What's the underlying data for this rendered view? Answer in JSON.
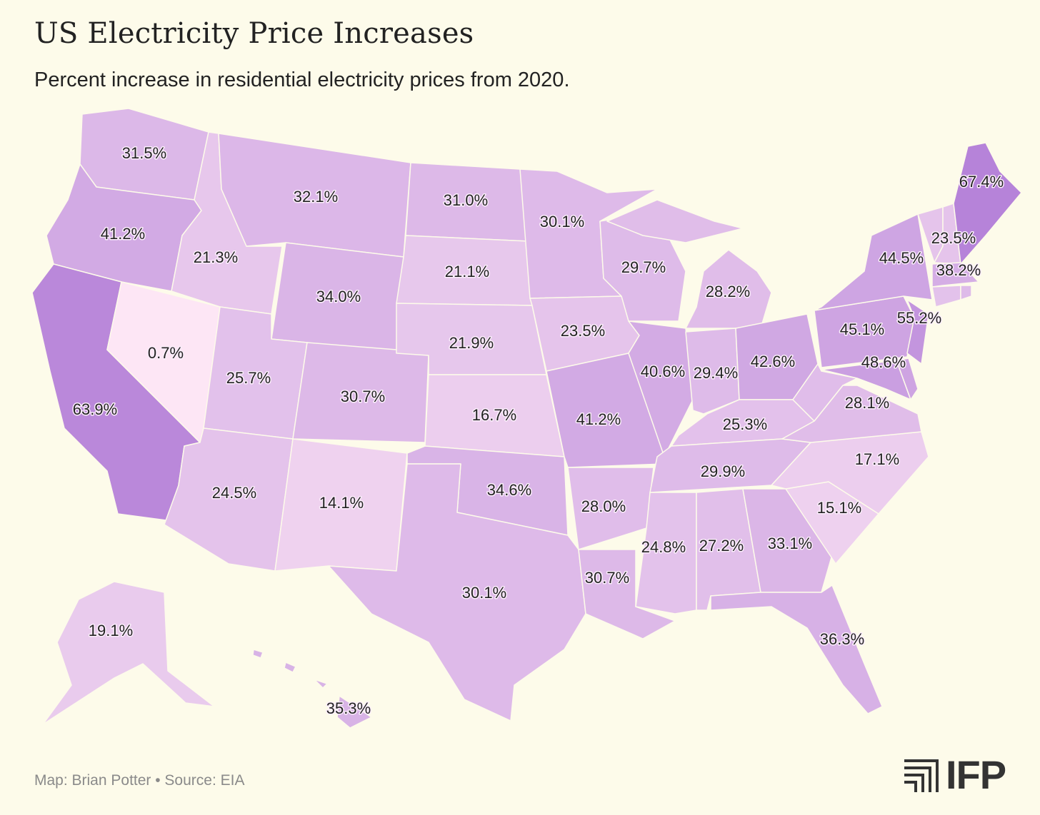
{
  "title": "US Electricity Price Increases",
  "subtitle": "Percent increase in residential electricity prices from 2020.",
  "footer": "Map: Brian Potter • Source: EIA",
  "logo": "IFP",
  "colors": {
    "low": "#fde6f5",
    "high": "#b683d9",
    "background": "#fdfbea"
  },
  "chart_data": {
    "type": "choropleth",
    "title": "US Electricity Price Increases",
    "metric": "Percent increase in residential electricity prices from 2020",
    "states": [
      {
        "state": "WA",
        "value": 31.5,
        "label": "31.5%"
      },
      {
        "state": "OR",
        "value": 41.2,
        "label": "41.2%"
      },
      {
        "state": "CA",
        "value": 63.9,
        "label": "63.9%"
      },
      {
        "state": "NV",
        "value": 0.7,
        "label": "0.7%"
      },
      {
        "state": "ID",
        "value": 21.3,
        "label": "21.3%"
      },
      {
        "state": "MT",
        "value": 32.1,
        "label": "32.1%"
      },
      {
        "state": "WY",
        "value": 34.0,
        "label": "34.0%"
      },
      {
        "state": "UT",
        "value": 25.7,
        "label": "25.7%"
      },
      {
        "state": "CO",
        "value": 30.7,
        "label": "30.7%"
      },
      {
        "state": "AZ",
        "value": 24.5,
        "label": "24.5%"
      },
      {
        "state": "NM",
        "value": 14.1,
        "label": "14.1%"
      },
      {
        "state": "ND",
        "value": 31.0,
        "label": "31.0%"
      },
      {
        "state": "SD",
        "value": 21.1,
        "label": "21.1%"
      },
      {
        "state": "NE",
        "value": 21.9,
        "label": "21.9%"
      },
      {
        "state": "KS",
        "value": 16.7,
        "label": "16.7%"
      },
      {
        "state": "OK",
        "value": 34.6,
        "label": "34.6%"
      },
      {
        "state": "TX",
        "value": 30.1,
        "label": "30.1%"
      },
      {
        "state": "MN",
        "value": 30.1,
        "label": "30.1%"
      },
      {
        "state": "IA",
        "value": 23.5,
        "label": "23.5%"
      },
      {
        "state": "MO",
        "value": 41.2,
        "label": "41.2%"
      },
      {
        "state": "AR",
        "value": 28.0,
        "label": "28.0%"
      },
      {
        "state": "LA",
        "value": 30.7,
        "label": "30.7%"
      },
      {
        "state": "WI",
        "value": 29.7,
        "label": "29.7%"
      },
      {
        "state": "IL",
        "value": 40.6,
        "label": "40.6%"
      },
      {
        "state": "MI",
        "value": 28.2,
        "label": "28.2%"
      },
      {
        "state": "IN",
        "value": 29.4,
        "label": "29.4%"
      },
      {
        "state": "OH",
        "value": 42.6,
        "label": "42.6%"
      },
      {
        "state": "KY",
        "value": 25.3,
        "label": "25.3%"
      },
      {
        "state": "TN",
        "value": 29.9,
        "label": "29.9%"
      },
      {
        "state": "MS",
        "value": 24.8,
        "label": "24.8%"
      },
      {
        "state": "AL",
        "value": 27.2,
        "label": "27.2%"
      },
      {
        "state": "GA",
        "value": 33.1,
        "label": "33.1%"
      },
      {
        "state": "FL",
        "value": 36.3,
        "label": "36.3%"
      },
      {
        "state": "SC",
        "value": 15.1,
        "label": "15.1%"
      },
      {
        "state": "NC",
        "value": 17.1,
        "label": "17.1%"
      },
      {
        "state": "VA",
        "value": 28.1,
        "label": "28.1%"
      },
      {
        "state": "WV",
        "value": null,
        "label": ""
      },
      {
        "state": "MD",
        "value": 48.6,
        "label": "48.6%"
      },
      {
        "state": "DE",
        "value": null,
        "label": ""
      },
      {
        "state": "PA",
        "value": 45.1,
        "label": "45.1%"
      },
      {
        "state": "NJ",
        "value": 55.2,
        "label": "55.2%"
      },
      {
        "state": "NY",
        "value": 44.5,
        "label": "44.5%"
      },
      {
        "state": "VT",
        "value": null,
        "label": ""
      },
      {
        "state": "NH",
        "value": 23.5,
        "label": "23.5%"
      },
      {
        "state": "ME",
        "value": 67.4,
        "label": "67.4%"
      },
      {
        "state": "MA",
        "value": 38.2,
        "label": "38.2%"
      },
      {
        "state": "CT",
        "value": null,
        "label": ""
      },
      {
        "state": "RI",
        "value": null,
        "label": ""
      },
      {
        "state": "AK",
        "value": 19.1,
        "label": "19.1%"
      },
      {
        "state": "HI",
        "value": 35.3,
        "label": "35.3%"
      }
    ]
  }
}
